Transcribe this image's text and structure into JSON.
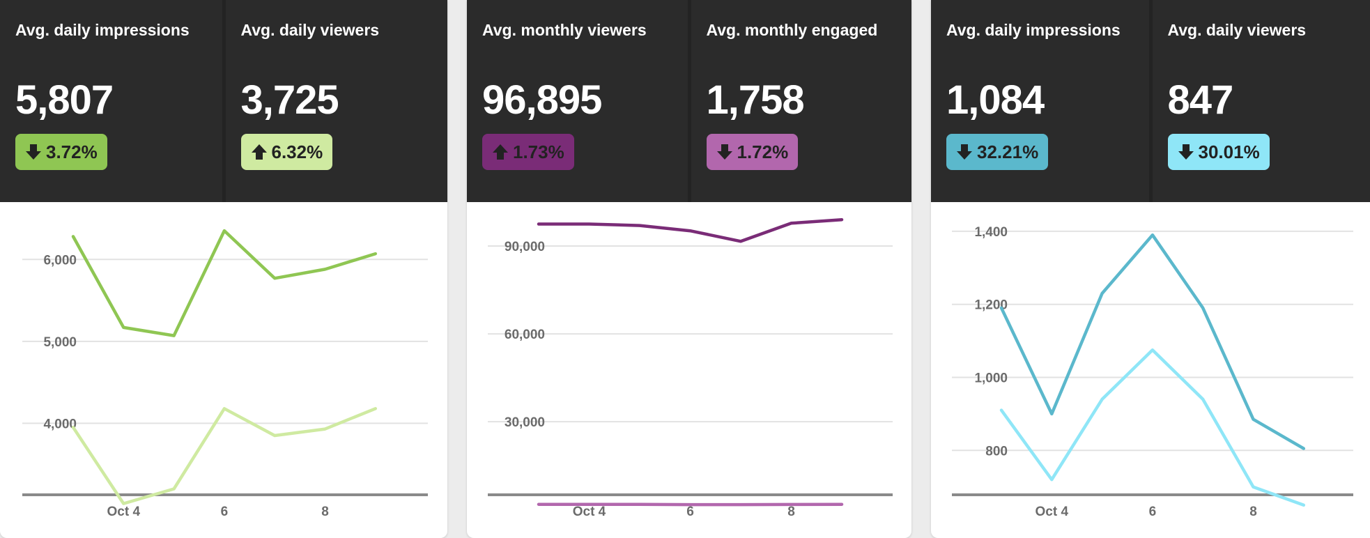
{
  "cards": [
    {
      "stats": [
        {
          "label": "Avg. daily impressions",
          "value": "5,807",
          "change": "3.72%",
          "direction": "down",
          "color": "#8fc653"
        },
        {
          "label": "Avg. daily viewers",
          "value": "3,725",
          "change": "6.32%",
          "direction": "up",
          "color": "#cfeaa1"
        }
      ]
    },
    {
      "stats": [
        {
          "label": "Avg. monthly viewers",
          "value": "96,895",
          "change": "1.73%",
          "direction": "up",
          "color": "#7a2c77"
        },
        {
          "label": "Avg. monthly engaged",
          "value": "1,758",
          "change": "1.72%",
          "direction": "down",
          "color": "#b267ad"
        }
      ]
    },
    {
      "stats": [
        {
          "label": "Avg. daily impressions",
          "value": "1,084",
          "change": "32.21%",
          "direction": "down",
          "color": "#5bb8cc"
        },
        {
          "label": "Avg. daily viewers",
          "value": "847",
          "change": "30.01%",
          "direction": "down",
          "color": "#8fe6f7"
        }
      ]
    }
  ],
  "chart_data": [
    {
      "type": "line",
      "x": [
        "Oct 3",
        "Oct 4",
        "Oct 5",
        "Oct 6",
        "Oct 7",
        "Oct 8",
        "Oct 9"
      ],
      "x_tick_labels": [
        "Oct 4",
        "6",
        "8"
      ],
      "y_ticks": [
        4000,
        5000,
        6000
      ],
      "y_tick_labels": [
        "4,000",
        "5,000",
        "6,000"
      ],
      "ylim": [
        2600,
        6700
      ],
      "grid": true,
      "series": [
        {
          "values": [
            6280,
            5170,
            5070,
            6350,
            5770,
            5880,
            6070
          ],
          "color": "#8fc653"
        },
        {
          "values": [
            3950,
            3020,
            3200,
            4180,
            3850,
            3930,
            4180
          ],
          "color": "#cfeaa1"
        }
      ]
    },
    {
      "type": "line",
      "x": [
        "Oct 3",
        "Oct 4",
        "Oct 5",
        "Oct 6",
        "Oct 7",
        "Oct 8",
        "Oct 9"
      ],
      "x_tick_labels": [
        "Oct 4",
        "6",
        "8"
      ],
      "y_ticks": [
        30000,
        60000,
        90000
      ],
      "y_tick_labels": [
        "30,000",
        "60,000",
        "90,000"
      ],
      "ylim": [
        -9700,
        105000
      ],
      "grid": true,
      "series": [
        {
          "values": [
            97500,
            97500,
            97000,
            95200,
            91600,
            97800,
            99000
          ],
          "color": "#7a2c77"
        },
        {
          "values": [
            1800,
            1800,
            1800,
            1700,
            1700,
            1750,
            1800
          ],
          "color": "#b267ad"
        }
      ]
    },
    {
      "type": "line",
      "x": [
        "Oct 3",
        "Oct 4",
        "Oct 5",
        "Oct 6",
        "Oct 7",
        "Oct 8",
        "Oct 9"
      ],
      "x_tick_labels": [
        "Oct 4",
        "6",
        "8"
      ],
      "y_ticks": [
        800,
        1000,
        1200,
        1400
      ],
      "y_tick_labels": [
        "800",
        "1,000",
        "1,200",
        "1,400"
      ],
      "ylim": [
        560,
        1480
      ],
      "grid": true,
      "series": [
        {
          "values": [
            1190,
            900,
            1230,
            1390,
            1190,
            885,
            805
          ],
          "color": "#5bb8cc"
        },
        {
          "values": [
            910,
            720,
            940,
            1075,
            940,
            700,
            650
          ],
          "color": "#8fe6f7"
        }
      ]
    }
  ]
}
